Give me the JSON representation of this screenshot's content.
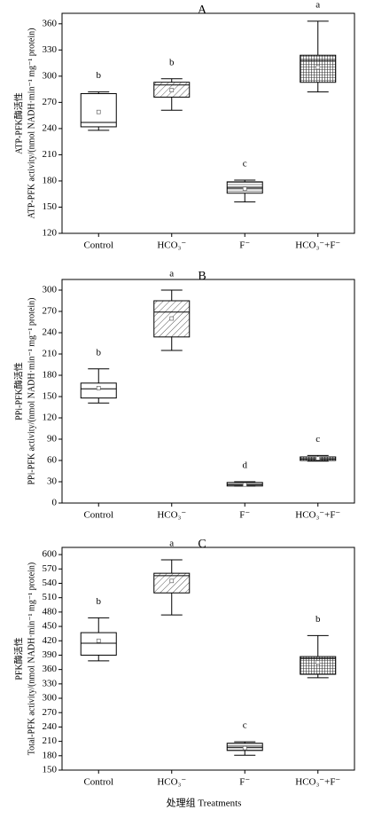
{
  "chart_data": [
    {
      "type": "box",
      "title": "A",
      "ylabel": "ATP-PFK酶活性",
      "ylabel2": "ATP-PFK activity/(nmol NADH·min⁻¹ mg⁻¹ protein)",
      "categories": [
        "Control",
        "HCO₃⁻",
        "F⁻",
        "HCO₃⁻+F⁻"
      ],
      "letters": [
        "b",
        "b",
        "c",
        "a"
      ],
      "patterns": [
        "none",
        "diagonal",
        "horizontal",
        "grid"
      ],
      "boxes": [
        {
          "whisker_low": 238,
          "q1": 242,
          "median": 247,
          "q3": 280,
          "whisker_high": 282,
          "mean": 259
        },
        {
          "whisker_low": 261,
          "q1": 276,
          "median": 290,
          "q3": 293,
          "whisker_high": 297,
          "mean": 284
        },
        {
          "whisker_low": 156,
          "q1": 166,
          "median": 172,
          "q3": 179,
          "whisker_high": 181,
          "mean": 171
        },
        {
          "whisker_low": 282,
          "q1": 293,
          "median": 318,
          "q3": 324,
          "whisker_high": 363,
          "mean": 310
        }
      ],
      "ylim": [
        120,
        372
      ],
      "yticks": [
        120,
        150,
        180,
        210,
        240,
        270,
        300,
        330,
        360
      ]
    },
    {
      "type": "box",
      "title": "B",
      "ylabel": "PPi-PFK酶活性",
      "ylabel2": "PPi-PFK activity/(nmol NADH·min⁻¹ mg⁻¹ protein)",
      "categories": [
        "Control",
        "HCO₃⁻",
        "F⁻",
        "HCO₃⁻+F⁻"
      ],
      "letters": [
        "b",
        "a",
        "d",
        "c"
      ],
      "patterns": [
        "none",
        "diagonal",
        "horizontal",
        "grid"
      ],
      "boxes": [
        {
          "whisker_low": 141,
          "q1": 148,
          "median": 161,
          "q3": 169,
          "whisker_high": 189,
          "mean": 162
        },
        {
          "whisker_low": 215,
          "q1": 234,
          "median": 269,
          "q3": 285,
          "whisker_high": 300,
          "mean": 260
        },
        {
          "whisker_low": 24,
          "q1": 24,
          "median": 26,
          "q3": 29,
          "whisker_high": 30,
          "mean": 26
        },
        {
          "whisker_low": 59,
          "q1": 60,
          "median": 62,
          "q3": 65,
          "whisker_high": 67,
          "mean": 63
        }
      ],
      "ylim": [
        0,
        315
      ],
      "yticks": [
        0,
        30,
        60,
        90,
        120,
        150,
        180,
        210,
        240,
        270,
        300
      ]
    },
    {
      "type": "box",
      "title": "C",
      "ylabel": "PFK酶活性",
      "ylabel2": "Total-PFK activity/(nmol NADH·min⁻¹ mg⁻¹ protein)",
      "categories": [
        "Control",
        "HCO₃⁻",
        "F⁻",
        "HCO₃⁻+F⁻"
      ],
      "letters": [
        "b",
        "a",
        "c",
        "b"
      ],
      "patterns": [
        "none",
        "diagonal",
        "horizontal",
        "grid"
      ],
      "boxes": [
        {
          "whisker_low": 378,
          "q1": 390,
          "median": 415,
          "q3": 437,
          "whisker_high": 468,
          "mean": 420
        },
        {
          "whisker_low": 474,
          "q1": 520,
          "median": 556,
          "q3": 561,
          "whisker_high": 589,
          "mean": 545
        },
        {
          "whisker_low": 181,
          "q1": 191,
          "median": 198,
          "q3": 206,
          "whisker_high": 209,
          "mean": 196
        },
        {
          "whisker_low": 343,
          "q1": 350,
          "median": 383,
          "q3": 387,
          "whisker_high": 431,
          "mean": 375
        }
      ],
      "ylim": [
        150,
        615
      ],
      "yticks": [
        150,
        180,
        210,
        240,
        270,
        300,
        330,
        360,
        390,
        420,
        450,
        480,
        510,
        540,
        570,
        600
      ]
    }
  ],
  "xlabel": "处理组  Treatments"
}
